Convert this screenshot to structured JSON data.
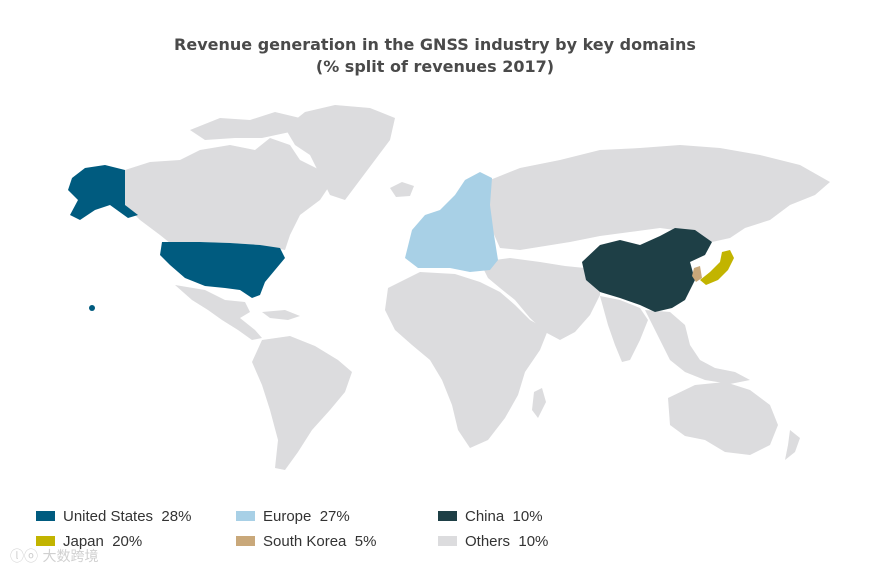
{
  "title": {
    "line1": "Revenue generation in the GNSS industry by key domains",
    "line2": "(% split of revenues 2017)"
  },
  "legend": [
    {
      "label": "United States",
      "value": "28%",
      "color": "#005b7f"
    },
    {
      "label": "Europe",
      "value": "27%",
      "color": "#a8d0e6"
    },
    {
      "label": "China",
      "value": "10%",
      "color": "#1e3f46"
    },
    {
      "label": "Japan",
      "value": "20%",
      "color": "#c2b400"
    },
    {
      "label": "South Korea",
      "value": "5%",
      "color": "#c9a87a"
    },
    {
      "label": "Others",
      "value": "10%",
      "color": "#dcdcde"
    }
  ],
  "watermark": "大数跨境"
}
